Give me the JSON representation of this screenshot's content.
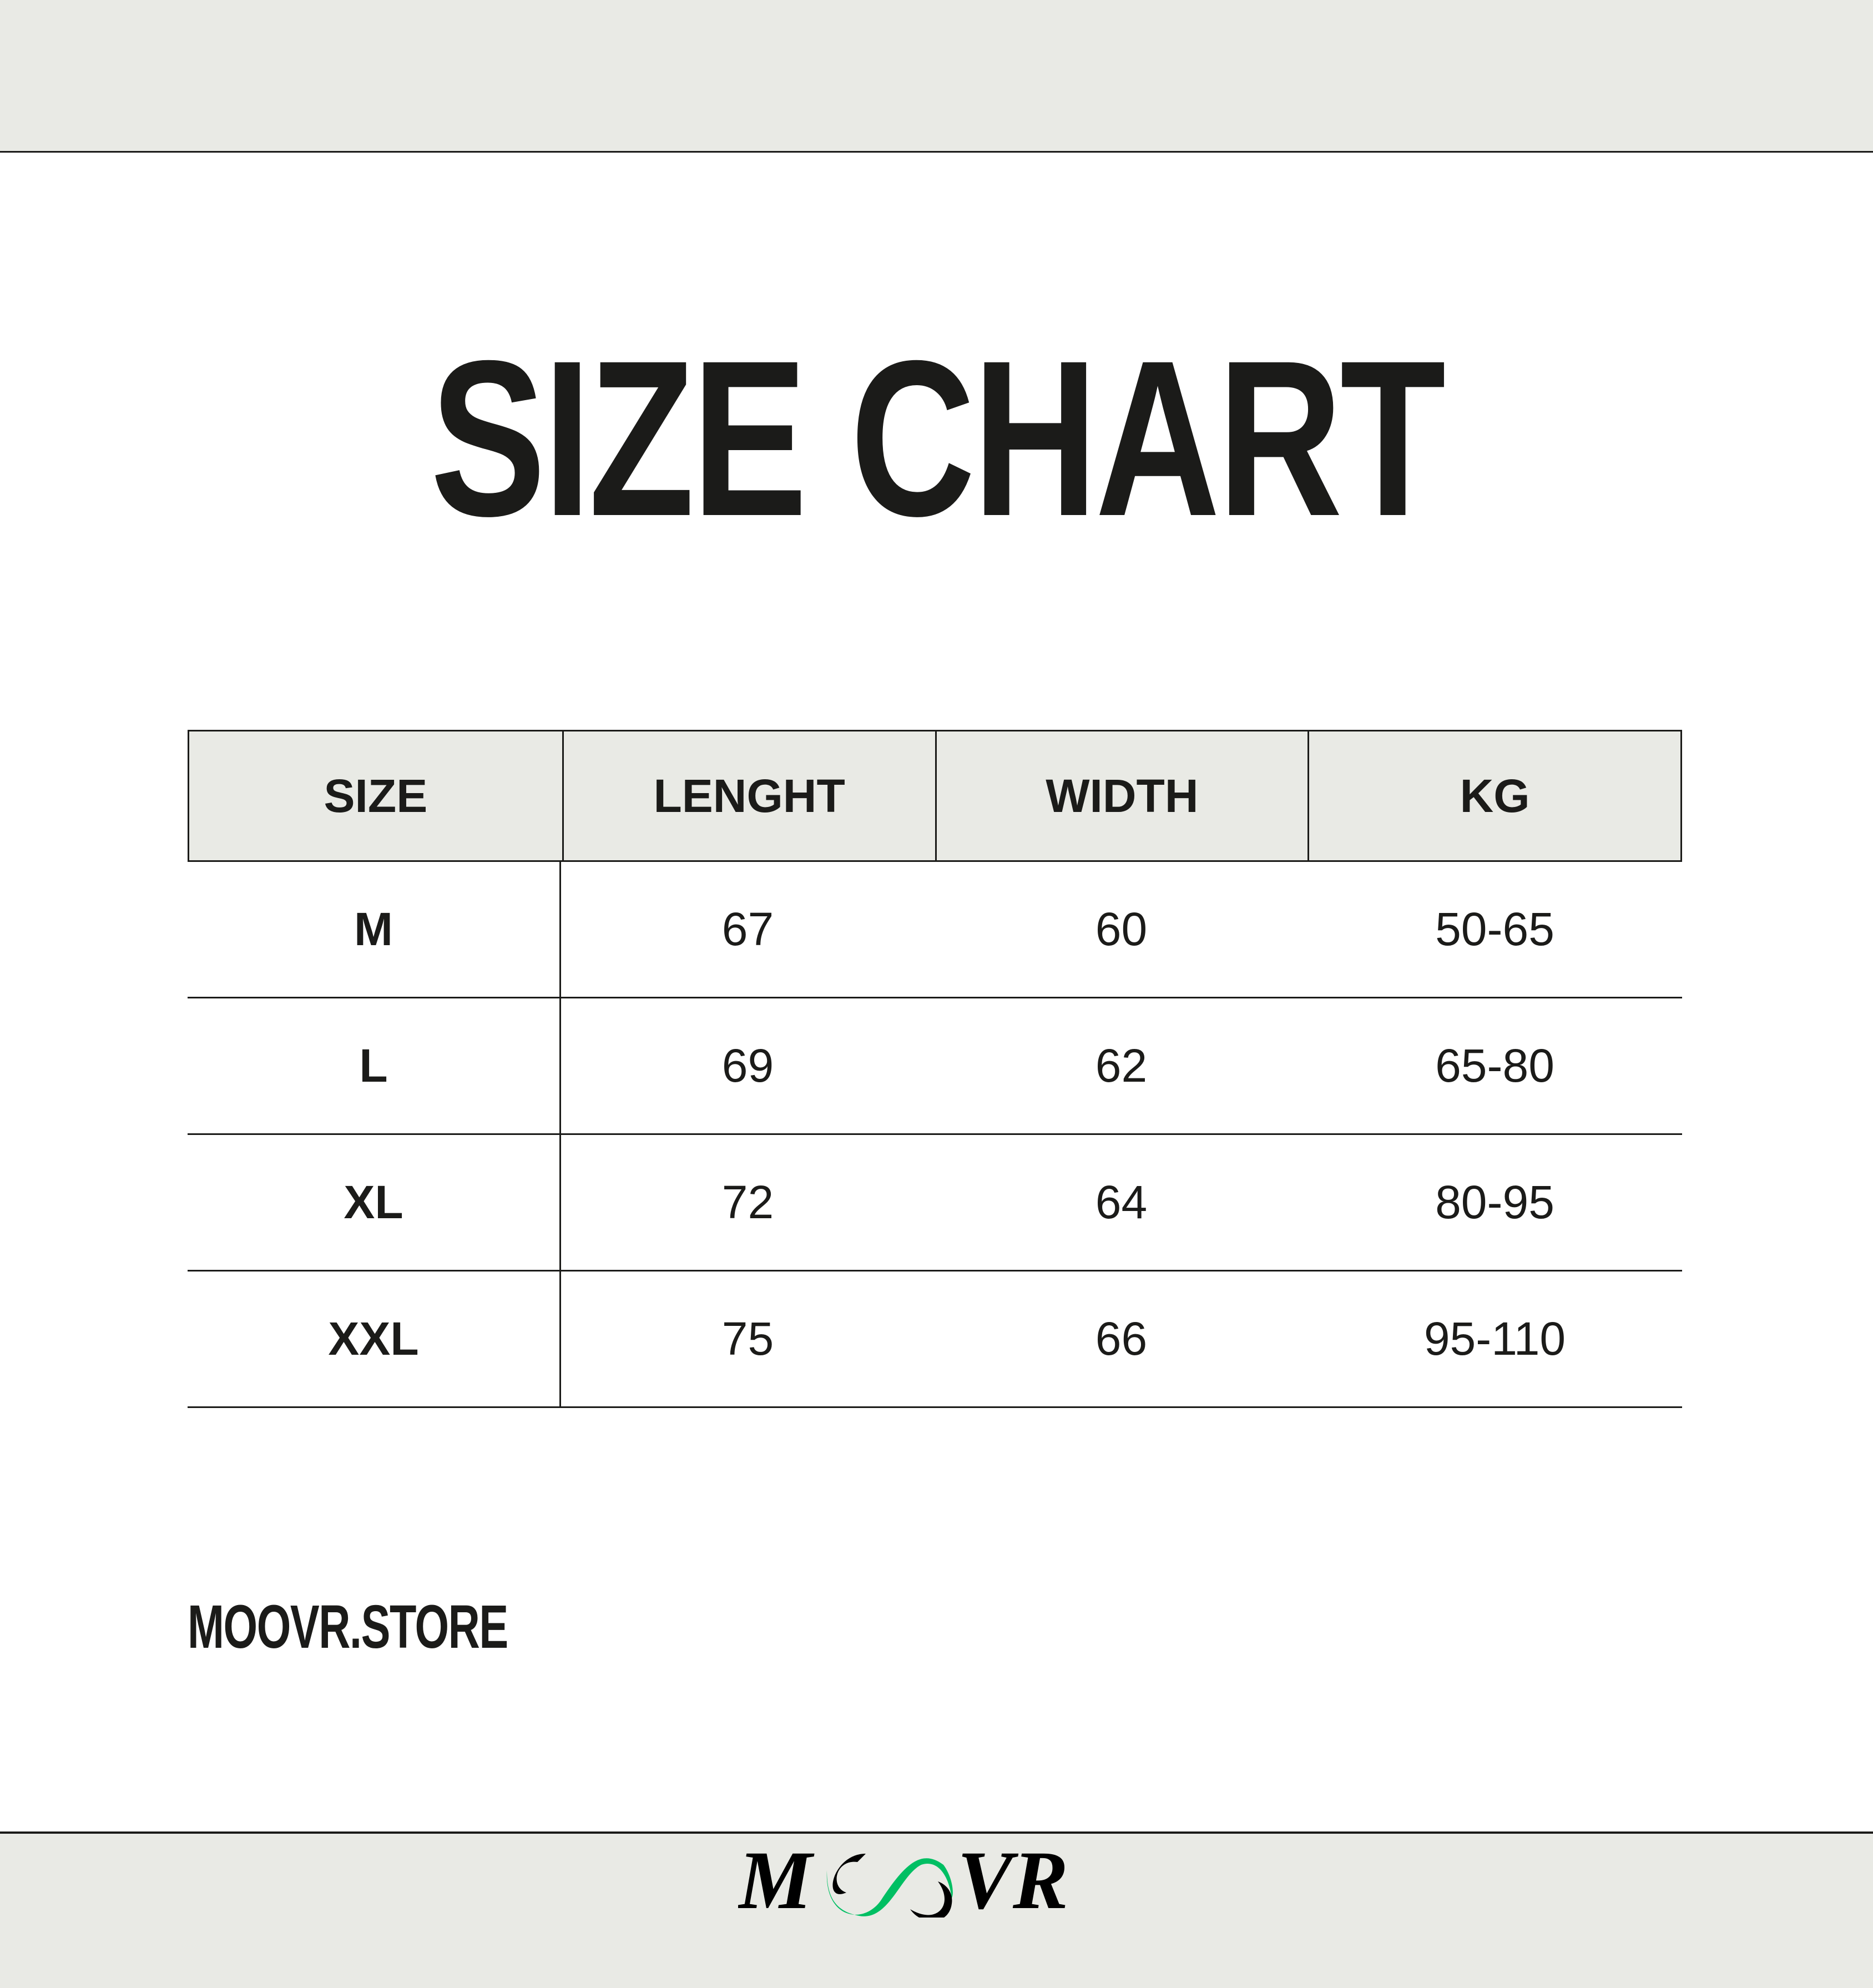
{
  "title": "SIZE CHART",
  "table": {
    "headers": [
      "SIZE",
      "LENGHT",
      "WIDTH",
      "KG"
    ],
    "rows": [
      [
        "M",
        "67",
        "60",
        "50-65"
      ],
      [
        "L",
        "69",
        "62",
        "65-80"
      ],
      [
        "XL",
        "72",
        "64",
        "80-95"
      ],
      [
        "XXL",
        "75",
        "66",
        "95-110"
      ]
    ]
  },
  "footer": {
    "store": "MOOVR.STORE",
    "logo_text": "MOOVR"
  },
  "colors": {
    "band": "#e9eae5",
    "text": "#1b1b19",
    "logo_accent": "#00bf63"
  }
}
